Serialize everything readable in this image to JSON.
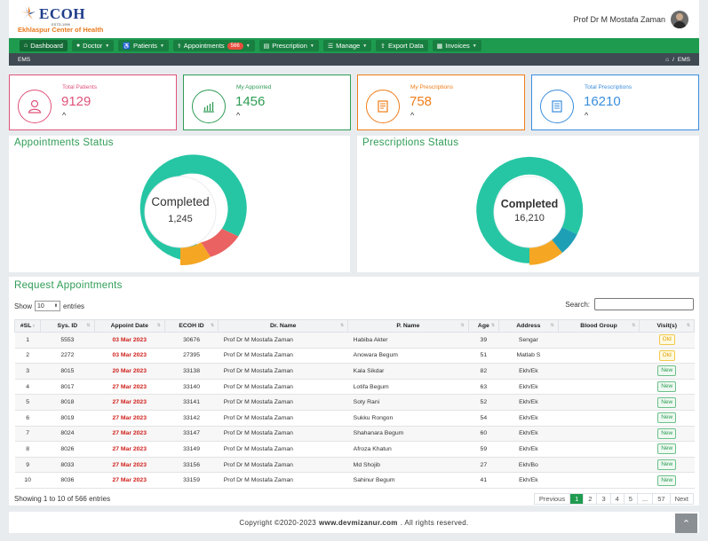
{
  "brand": {
    "name": "ECOH",
    "estd": "ESTD-1999",
    "subtitle": "Ekhlaspur Center of Health",
    "logo_color": "#1f3d8a",
    "accent": "#e8791e"
  },
  "user": {
    "name": "Prof Dr M Mostafa Zaman"
  },
  "nav": {
    "color": "#1e9b4f",
    "items": [
      {
        "label": "Dashboard",
        "icon": "home-icon"
      },
      {
        "label": "Doctor",
        "icon": "user-icon"
      },
      {
        "label": "Patients",
        "icon": "patients-icon"
      },
      {
        "label": "Appointments",
        "icon": "stethoscope-icon",
        "badge": "566"
      },
      {
        "label": "Prescription",
        "icon": "document-icon"
      },
      {
        "label": "Manage",
        "icon": "list-icon"
      },
      {
        "label": "Export Data",
        "icon": "export-icon"
      },
      {
        "label": "Invoices",
        "icon": "invoice-icon"
      }
    ]
  },
  "breadcrumb": {
    "left": "EMS",
    "separator": "/",
    "current": "EMS"
  },
  "stats": [
    {
      "label": "Total Patients",
      "value": "9129",
      "color": "#e0537a"
    },
    {
      "label": "My Appointed",
      "value": "1456",
      "color": "#2e9c55"
    },
    {
      "label": "My Prescriptions",
      "value": "758",
      "color": "#ef7d18"
    },
    {
      "label": "Total Prescriptions",
      "value": "16210",
      "color": "#3b8ede"
    }
  ],
  "appointments_status": {
    "title": "Appointments Status",
    "center_label": "Completed",
    "center_value": "1,245"
  },
  "prescriptions_status": {
    "title": "Prescriptions Status",
    "center_label": "Completed",
    "center_value": "16,210"
  },
  "requests": {
    "title": "Request Appointments",
    "show_label": "Show",
    "entries_value": "10",
    "entries_label": "entries",
    "search_label": "Search:",
    "columns": [
      "#SL",
      "Sys. ID",
      "Appoint Date",
      "ECOH ID",
      "Dr. Name",
      "P. Name",
      "Age",
      "Address",
      "Blood Group",
      "Visit(s)"
    ],
    "rows": [
      [
        "1",
        "5553",
        "03 Mar 2023",
        "30676",
        "Prof Dr M Mostafa Zaman",
        "Habiba Akter",
        "39",
        "Sengar",
        "",
        "Old"
      ],
      [
        "2",
        "2272",
        "03 Mar 2023",
        "27395",
        "Prof Dr M Mostafa Zaman",
        "Anowara Begum",
        "51",
        "Matlab S",
        "",
        "Old"
      ],
      [
        "3",
        "8015",
        "20 Mar 2023",
        "33138",
        "Prof Dr M Mostafa Zaman",
        "Kala Sikdar",
        "82",
        "Ekh/Ek",
        "",
        "New"
      ],
      [
        "4",
        "8017",
        "27 Mar 2023",
        "33140",
        "Prof Dr M Mostafa Zaman",
        "Lotifa Begum",
        "63",
        "Ekh/Ek",
        "",
        "New"
      ],
      [
        "5",
        "8018",
        "27 Mar 2023",
        "33141",
        "Prof Dr M Mostafa Zaman",
        "Soty Rani",
        "52",
        "Ekh/Ek",
        "",
        "New"
      ],
      [
        "6",
        "8019",
        "27 Mar 2023",
        "33142",
        "Prof Dr M Mostafa Zaman",
        "Sukku Rongon",
        "54",
        "Ekh/Ek",
        "",
        "New"
      ],
      [
        "7",
        "8024",
        "27 Mar 2023",
        "33147",
        "Prof Dr M Mostafa Zaman",
        "Shahanara Begum",
        "60",
        "Ekh/Ek",
        "",
        "New"
      ],
      [
        "8",
        "8026",
        "27 Mar 2023",
        "33149",
        "Prof Dr M Mostafa Zaman",
        "Afroza Khatun",
        "59",
        "Ekh/Ek",
        "",
        "New"
      ],
      [
        "9",
        "8033",
        "27 Mar 2023",
        "33156",
        "Prof Dr M Mostafa Zaman",
        "Md Shojib",
        "27",
        "Ekh/Bo",
        "",
        "New"
      ],
      [
        "10",
        "8036",
        "27 Mar 2023",
        "33159",
        "Prof Dr M Mostafa Zaman",
        "Sahinur Begum",
        "41",
        "Ekh/Ek",
        "",
        "New"
      ]
    ],
    "showing": "Showing 1 to 10 of 566 entries",
    "pagination": [
      "Previous",
      "1",
      "2",
      "3",
      "4",
      "5",
      "...",
      "57",
      "Next"
    ]
  },
  "footer": {
    "prefix": "Copyright ©2020-2023",
    "site": "www.devmizanur.com",
    "suffix": ". All rights reserved."
  }
}
